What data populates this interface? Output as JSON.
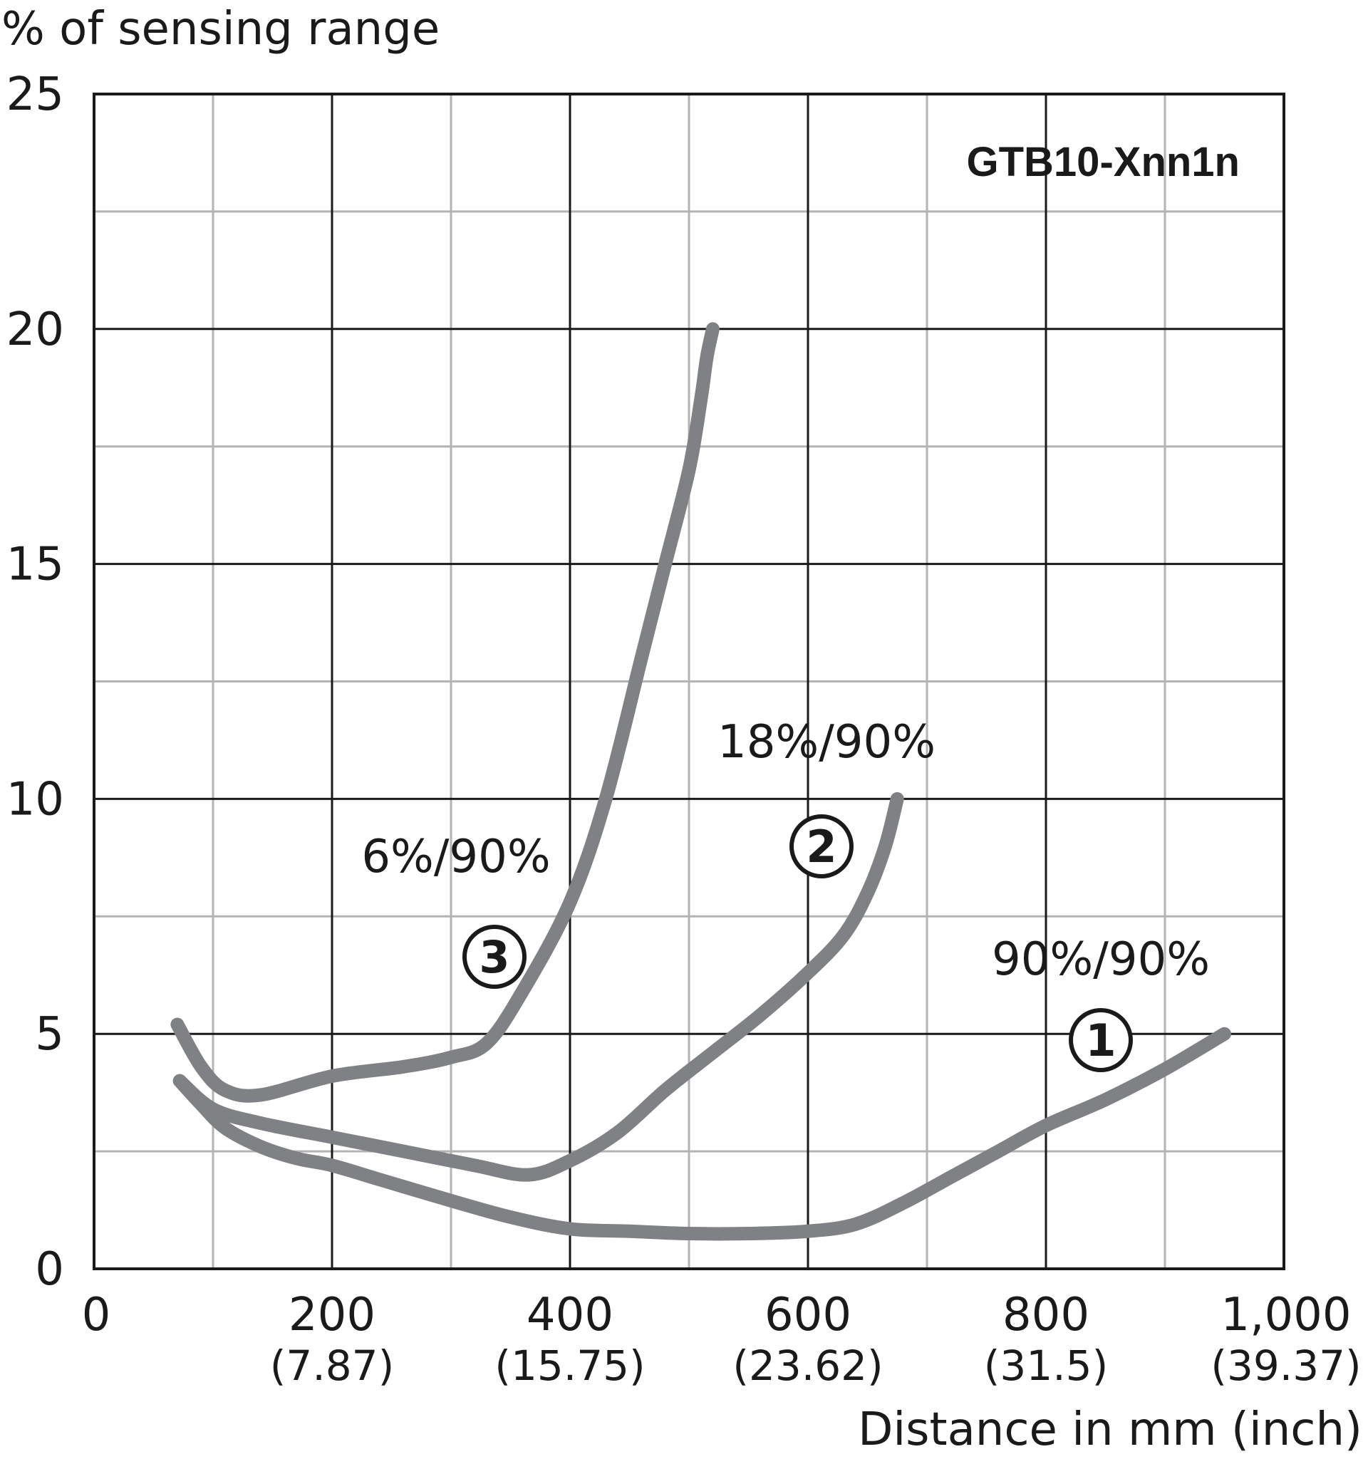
{
  "chart_data": {
    "type": "line",
    "title": "GTB10-Xnn1n",
    "ylabel": "% of sensing range",
    "xlabel": "Distance in mm (inch)",
    "xlim": [
      0,
      1000
    ],
    "ylim": [
      0,
      25
    ],
    "x_major_ticks": [
      {
        "value": 0,
        "label": "0",
        "sub": ""
      },
      {
        "value": 200,
        "label": "200",
        "sub": "(7.87)"
      },
      {
        "value": 400,
        "label": "400",
        "sub": "(15.75)"
      },
      {
        "value": 600,
        "label": "600",
        "sub": "(23.62)"
      },
      {
        "value": 800,
        "label": "800",
        "sub": "(31.5)"
      },
      {
        "value": 1000,
        "label": "1,000",
        "sub": "(39.37)"
      }
    ],
    "x_minor_ticks": [
      100,
      300,
      500,
      700,
      900
    ],
    "y_major_ticks": [
      {
        "value": 0,
        "label": "0"
      },
      {
        "value": 5,
        "label": "5"
      },
      {
        "value": 10,
        "label": "10"
      },
      {
        "value": 15,
        "label": "15"
      },
      {
        "value": 20,
        "label": "20"
      },
      {
        "value": 25,
        "label": "25"
      }
    ],
    "y_minor_ticks": [
      2.5,
      7.5,
      12.5,
      17.5,
      22.5
    ],
    "grid": true,
    "line_color": "#808184",
    "series": [
      {
        "name": "90%/90%",
        "marker": "①",
        "x": [
          72,
          90,
          110,
          140,
          170,
          200,
          240,
          300,
          350,
          400,
          450,
          500,
          550,
          600,
          640,
          680,
          720,
          760,
          800,
          850,
          900,
          950
        ],
        "y": [
          4.0,
          3.5,
          3.0,
          2.6,
          2.35,
          2.2,
          1.9,
          1.45,
          1.1,
          0.85,
          0.8,
          0.75,
          0.75,
          0.8,
          0.95,
          1.4,
          1.95,
          2.5,
          3.05,
          3.6,
          4.25,
          5.0
        ]
      },
      {
        "name": "18%/90%",
        "marker": "②",
        "x": [
          72,
          100,
          140,
          200,
          260,
          320,
          365,
          400,
          440,
          480,
          520,
          560,
          600,
          630,
          650,
          665,
          675
        ],
        "y": [
          4.0,
          3.4,
          3.1,
          2.8,
          2.5,
          2.2,
          2.0,
          2.3,
          2.9,
          3.8,
          4.6,
          5.4,
          6.3,
          7.1,
          8.0,
          9.0,
          10.0
        ]
      },
      {
        "name": "6%/90%",
        "marker": "③",
        "x": [
          70,
          90,
          110,
          140,
          200,
          260,
          300,
          330,
          360,
          400,
          430,
          460,
          480,
          500,
          510,
          515,
          520
        ],
        "y": [
          5.2,
          4.3,
          3.8,
          3.7,
          4.1,
          4.3,
          4.5,
          4.8,
          5.9,
          7.8,
          10.0,
          13.0,
          15.0,
          17.0,
          18.5,
          19.4,
          20.0
        ]
      }
    ]
  }
}
